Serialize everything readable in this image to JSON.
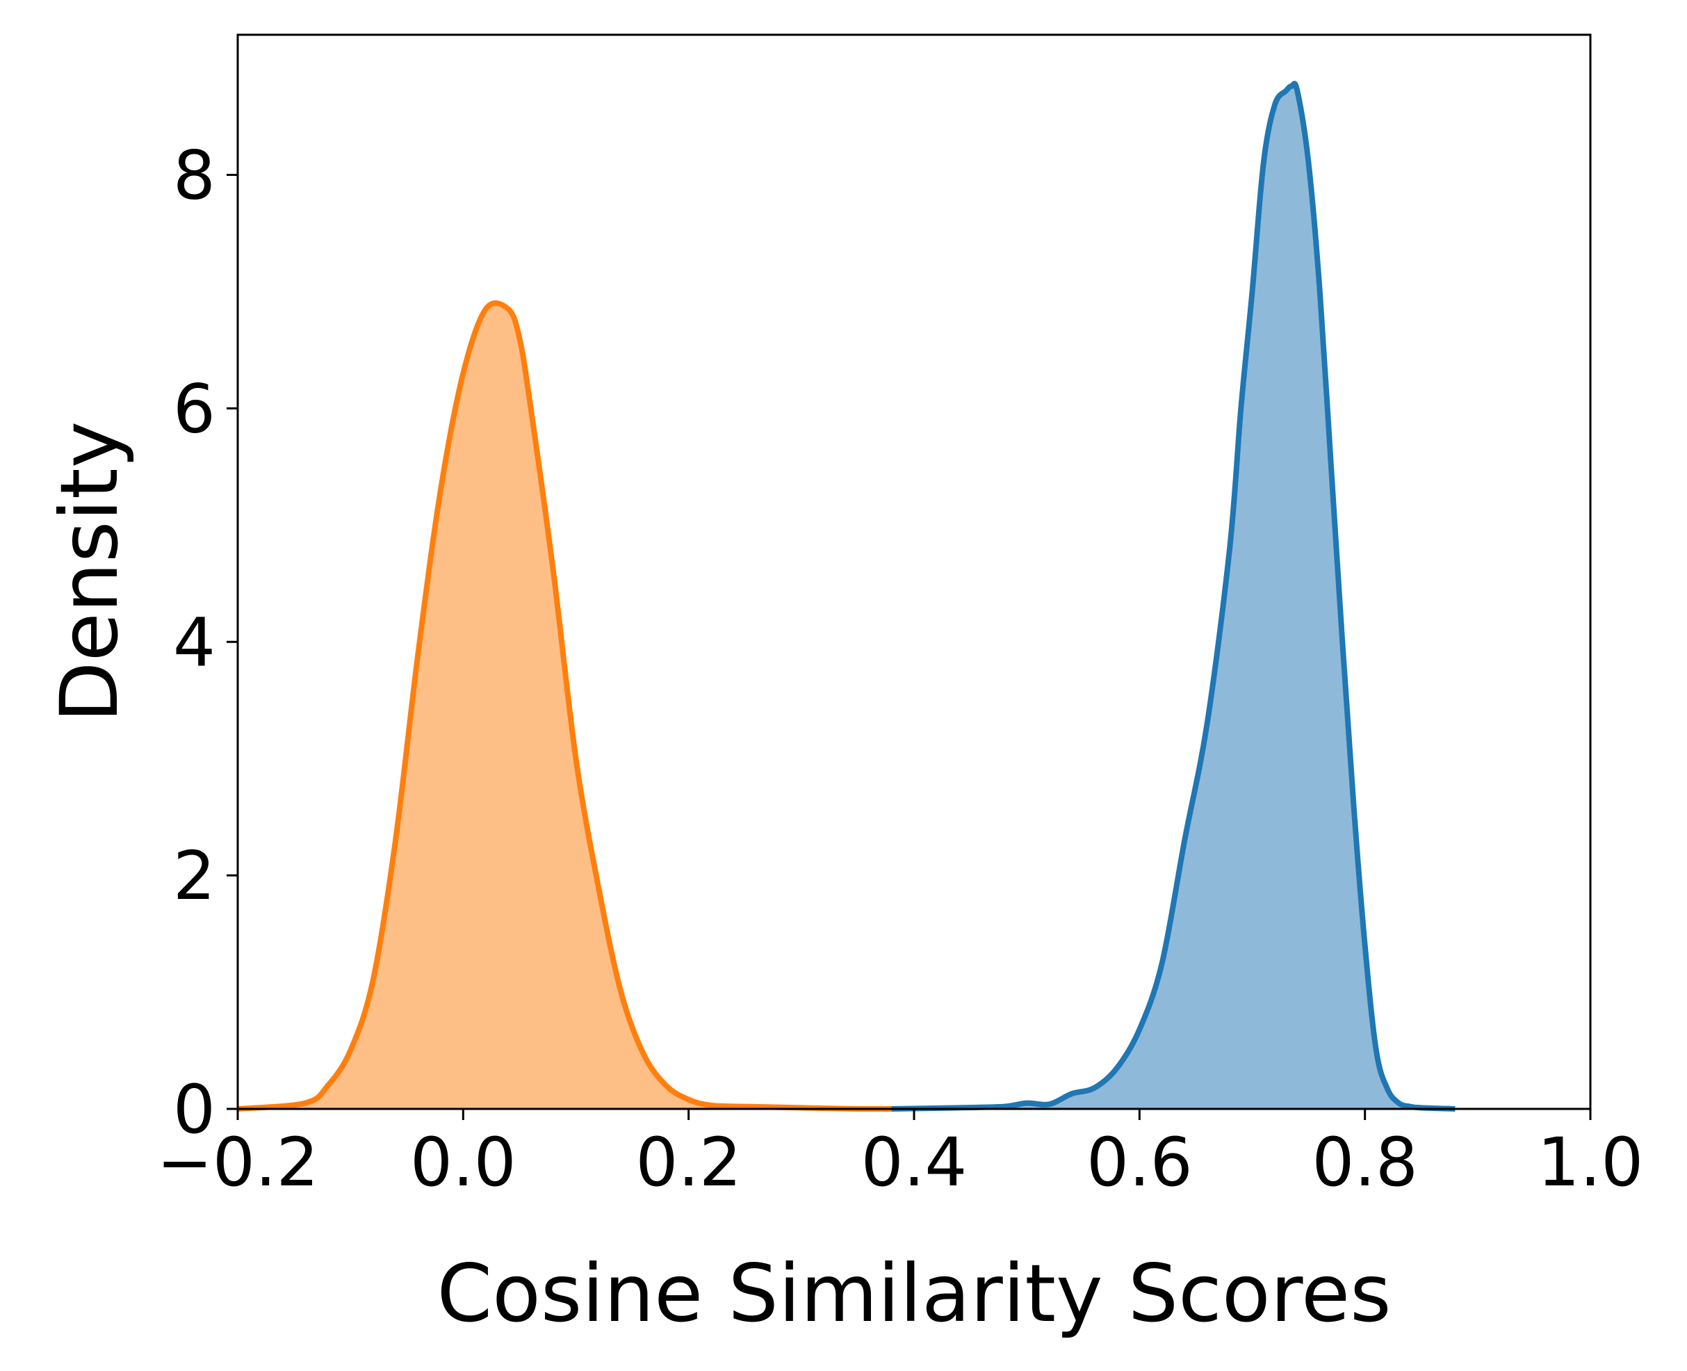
{
  "chart_data": {
    "type": "area",
    "xlabel": "Cosine Similarity Scores",
    "ylabel": "Density",
    "xlim": [
      -0.2,
      1.0
    ],
    "ylim": [
      0,
      9.2
    ],
    "xticks": [
      -0.2,
      0.0,
      0.2,
      0.4,
      0.6,
      0.8,
      1.0
    ],
    "xtick_labels": [
      "−0.2",
      "0.0",
      "0.2",
      "0.4",
      "0.6",
      "0.8",
      "1.0"
    ],
    "yticks": [
      0,
      2,
      4,
      6,
      8
    ],
    "ytick_labels": [
      "0",
      "2",
      "4",
      "6",
      "8"
    ],
    "grid": false,
    "legend": "none",
    "series": [
      {
        "color": "#1f77b4",
        "fill_color": "#8fb9d9",
        "x": [
          0.38,
          0.44,
          0.48,
          0.5,
          0.52,
          0.54,
          0.56,
          0.58,
          0.6,
          0.62,
          0.64,
          0.66,
          0.68,
          0.69,
          0.7,
          0.71,
          0.72,
          0.73,
          0.735,
          0.74,
          0.75,
          0.76,
          0.77,
          0.78,
          0.79,
          0.8,
          0.81,
          0.82,
          0.83,
          0.84,
          0.85,
          0.88
        ],
        "y": [
          0.0,
          0.01,
          0.02,
          0.05,
          0.04,
          0.13,
          0.18,
          0.35,
          0.68,
          1.25,
          2.3,
          3.3,
          4.8,
          6.0,
          7.0,
          8.1,
          8.6,
          8.72,
          8.76,
          8.72,
          8.1,
          7.0,
          5.5,
          4.0,
          2.6,
          1.4,
          0.5,
          0.17,
          0.05,
          0.02,
          0.01,
          0.0
        ]
      },
      {
        "color": "#ff7f0e",
        "fill_color": "#febf87",
        "x": [
          -0.2,
          -0.14,
          -0.12,
          -0.1,
          -0.08,
          -0.06,
          -0.04,
          -0.02,
          0.0,
          0.02,
          0.04,
          0.05,
          0.06,
          0.08,
          0.1,
          0.12,
          0.14,
          0.16,
          0.18,
          0.2,
          0.22,
          0.25,
          0.3,
          0.35,
          0.38
        ],
        "y": [
          0.0,
          0.05,
          0.2,
          0.5,
          1.1,
          2.3,
          3.9,
          5.3,
          6.3,
          6.85,
          6.85,
          6.6,
          6.0,
          4.6,
          3.0,
          1.9,
          1.0,
          0.47,
          0.2,
          0.08,
          0.03,
          0.02,
          0.01,
          0.0,
          0.0
        ]
      }
    ]
  }
}
